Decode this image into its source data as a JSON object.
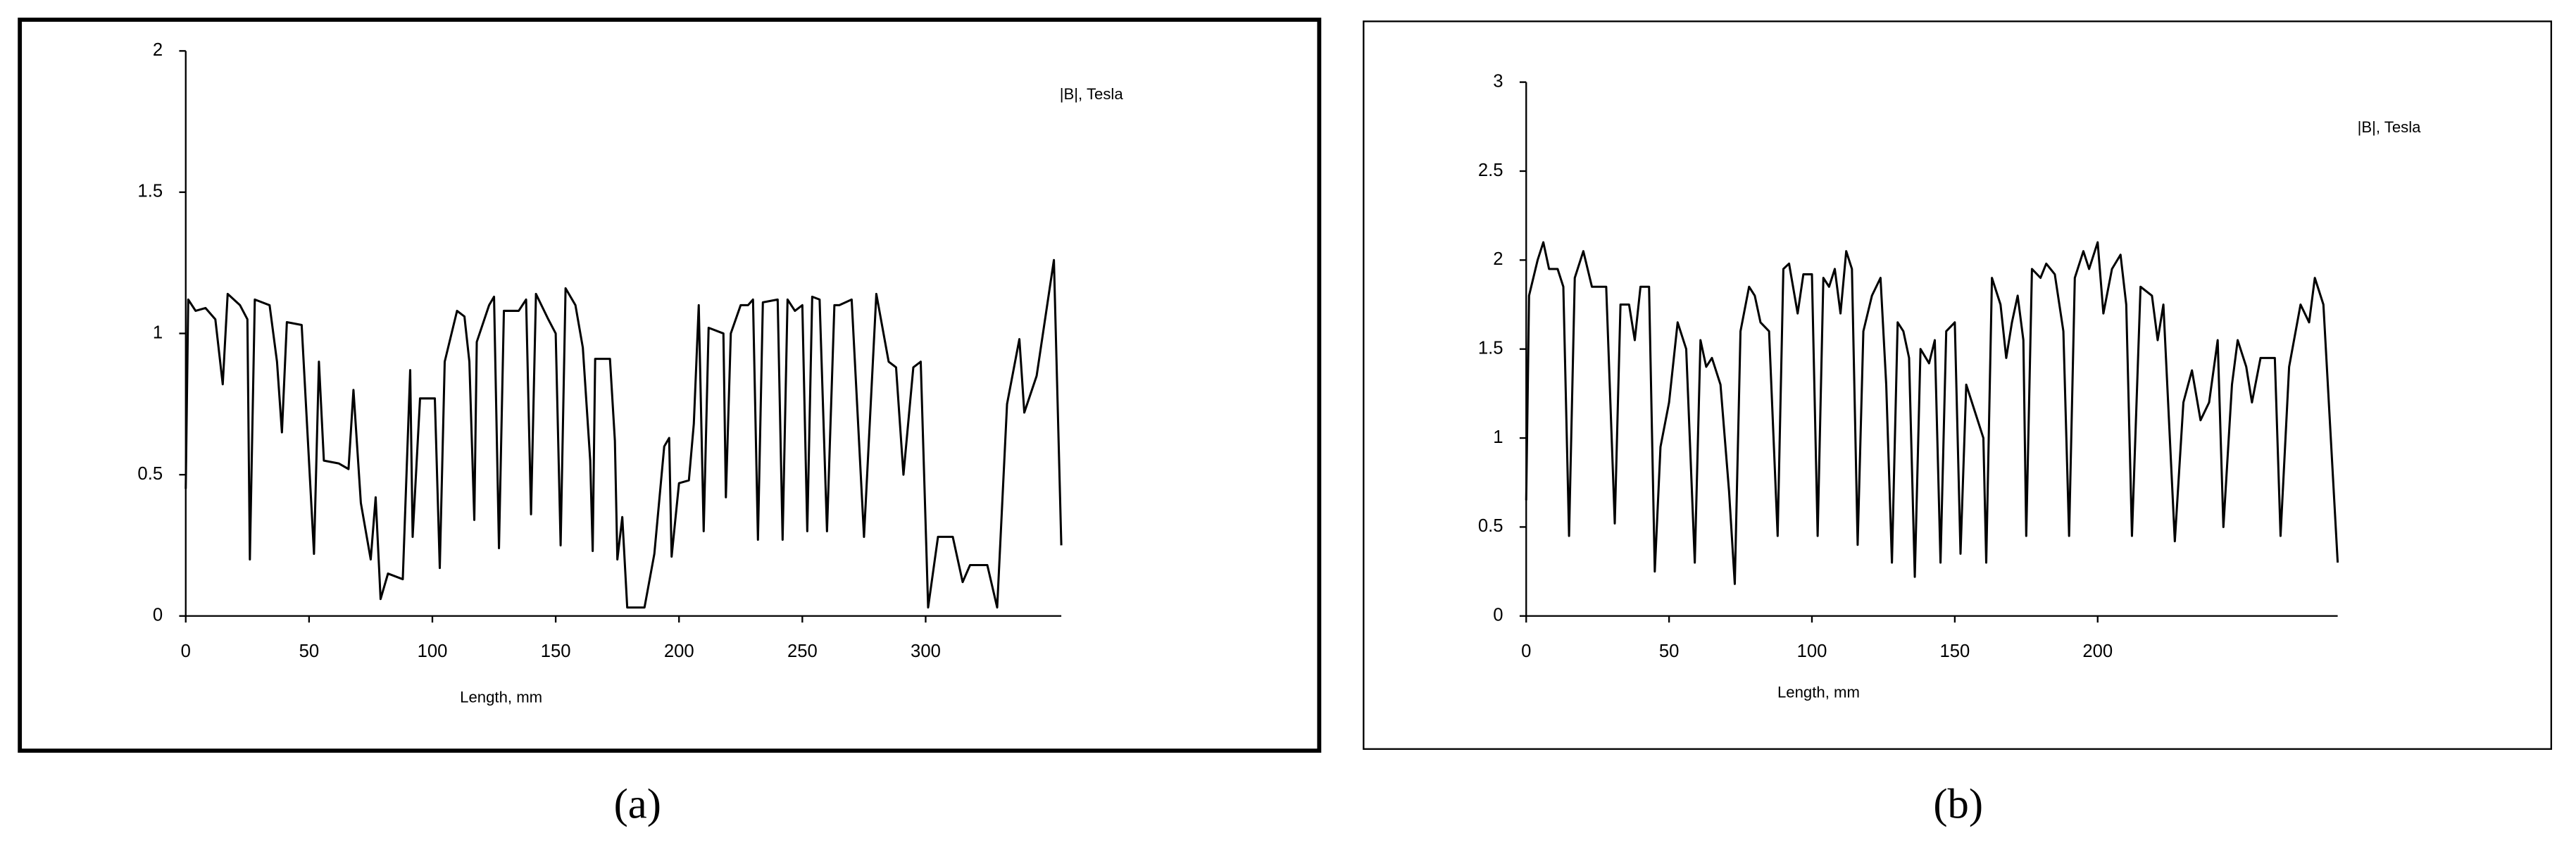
{
  "chart_data": [
    {
      "type": "line",
      "caption": "(a)",
      "annotation": "|B|, Tesla",
      "xlabel": "Length, mm",
      "xlim": [
        0,
        355
      ],
      "ylim": [
        0,
        2
      ],
      "xticks": [
        0,
        50,
        100,
        150,
        200,
        250,
        300
      ],
      "yticks": [
        0,
        0.5,
        1,
        1.5,
        2
      ],
      "x": [
        0,
        1,
        4,
        8,
        12,
        15,
        17,
        22,
        25,
        26,
        28,
        34,
        37,
        39,
        41,
        47,
        52,
        54,
        56,
        62,
        66,
        68,
        71,
        75,
        77,
        79,
        82,
        88,
        91,
        92,
        95,
        101,
        103,
        105,
        110,
        113,
        115,
        117,
        118,
        123,
        125,
        127,
        129,
        135,
        138,
        140,
        142,
        147,
        150,
        152,
        154,
        158,
        161,
        164,
        165,
        166,
        172,
        174,
        175,
        177,
        179,
        186,
        190,
        194,
        196,
        197,
        200,
        204,
        206,
        208,
        210,
        212,
        218,
        219,
        221,
        225,
        228,
        230,
        232,
        234,
        240,
        242,
        244,
        247,
        250,
        252,
        254,
        257,
        260,
        263,
        265,
        270,
        275,
        280,
        285,
        288,
        291,
        295,
        298,
        301,
        305,
        311,
        315,
        318,
        325,
        329,
        333,
        338,
        340,
        345,
        352,
        355
      ],
      "series": [
        {
          "color": "#000000",
          "values": [
            0.45,
            1.12,
            1.08,
            1.09,
            1.05,
            0.82,
            1.14,
            1.1,
            1.05,
            0.2,
            1.12,
            1.1,
            0.9,
            0.65,
            1.04,
            1.03,
            0.22,
            0.9,
            0.55,
            0.54,
            0.52,
            0.8,
            0.4,
            0.2,
            0.42,
            0.06,
            0.15,
            0.13,
            0.87,
            0.28,
            0.77,
            0.77,
            0.17,
            0.9,
            1.08,
            1.06,
            0.9,
            0.34,
            0.97,
            1.1,
            1.13,
            0.24,
            1.08,
            1.08,
            1.12,
            0.36,
            1.14,
            1.05,
            1.0,
            0.25,
            1.16,
            1.1,
            0.95,
            0.55,
            0.23,
            0.91,
            0.91,
            0.62,
            0.2,
            0.35,
            0.03,
            0.03,
            0.22,
            0.6,
            0.63,
            0.21,
            0.47,
            0.48,
            0.68,
            1.1,
            0.3,
            1.02,
            1.0,
            0.42,
            1.0,
            1.1,
            1.1,
            1.12,
            0.27,
            1.11,
            1.12,
            0.27,
            1.12,
            1.08,
            1.1,
            0.3,
            1.13,
            1.12,
            0.3,
            1.1,
            1.1,
            1.12,
            0.28,
            1.14,
            0.9,
            0.88,
            0.5,
            0.88,
            0.9,
            0.03,
            0.28,
            0.28,
            0.12,
            0.18,
            0.18,
            0.03,
            0.75,
            0.98,
            0.72,
            0.85,
            1.26,
            0.25
          ]
        }
      ]
    },
    {
      "type": "line",
      "caption": "(b)",
      "annotation": "|B|, Tesla",
      "xlabel": "Length, mm",
      "xlim": [
        0,
        284
      ],
      "ylim": [
        0,
        3
      ],
      "xticks": [
        0,
        50,
        100,
        150,
        200
      ],
      "yticks": [
        0,
        0.5,
        1,
        1.5,
        2,
        2.5,
        3
      ],
      "x": [
        0,
        1,
        4,
        6,
        8,
        11,
        13,
        15,
        17,
        20,
        23,
        28,
        31,
        33,
        36,
        38,
        40,
        43,
        45,
        47,
        50,
        53,
        56,
        59,
        61,
        63,
        65,
        68,
        71,
        73,
        75,
        78,
        80,
        82,
        85,
        88,
        90,
        92,
        95,
        97,
        100,
        102,
        104,
        106,
        108,
        110,
        112,
        114,
        116,
        118,
        121,
        124,
        126,
        128,
        130,
        132,
        134,
        136,
        138,
        141,
        143,
        145,
        147,
        150,
        152,
        154,
        157,
        160,
        161,
        163,
        166,
        168,
        170,
        172,
        174,
        175,
        177,
        180,
        182,
        185,
        188,
        190,
        192,
        195,
        197,
        200,
        202,
        205,
        208,
        210,
        212,
        215,
        219,
        221,
        223,
        227,
        230,
        233,
        236,
        239,
        242,
        244,
        247,
        249,
        252,
        254,
        257,
        262,
        264,
        267,
        271,
        274,
        276,
        279,
        284
      ],
      "series": [
        {
          "color": "#000000",
          "values": [
            0.65,
            1.8,
            2.0,
            2.1,
            1.95,
            1.95,
            1.85,
            0.45,
            1.9,
            2.05,
            1.85,
            1.85,
            0.52,
            1.75,
            1.75,
            1.55,
            1.85,
            1.85,
            0.25,
            0.95,
            1.2,
            1.65,
            1.5,
            0.3,
            1.55,
            1.4,
            1.45,
            1.3,
            0.7,
            0.18,
            1.6,
            1.85,
            1.8,
            1.65,
            1.6,
            0.45,
            1.95,
            1.98,
            1.7,
            1.92,
            1.92,
            0.45,
            1.9,
            1.85,
            1.95,
            1.7,
            2.05,
            1.95,
            0.4,
            1.6,
            1.8,
            1.9,
            1.3,
            0.3,
            1.65,
            1.6,
            1.45,
            0.22,
            1.5,
            1.42,
            1.55,
            0.3,
            1.6,
            1.65,
            0.35,
            1.3,
            1.15,
            1.0,
            0.3,
            1.9,
            1.75,
            1.45,
            1.65,
            1.8,
            1.55,
            0.45,
            1.95,
            1.9,
            1.98,
            1.92,
            1.6,
            0.45,
            1.9,
            2.05,
            1.95,
            2.1,
            1.7,
            1.95,
            2.03,
            1.75,
            0.45,
            1.85,
            1.8,
            1.55,
            1.75,
            0.42,
            1.2,
            1.38,
            1.1,
            1.2,
            1.55,
            0.5,
            1.3,
            1.55,
            1.4,
            1.2,
            1.45,
            1.45,
            0.45,
            1.4,
            1.75,
            1.65,
            1.9,
            1.75,
            0.3
          ]
        }
      ]
    }
  ]
}
